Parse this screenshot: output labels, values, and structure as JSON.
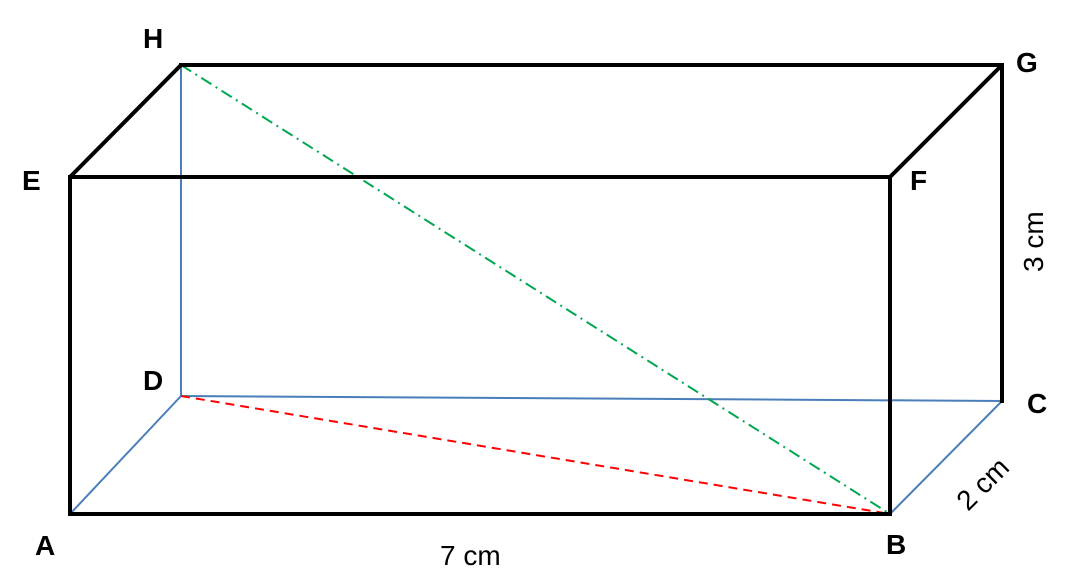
{
  "vertices": {
    "A": "A",
    "B": "B",
    "C": "C",
    "D": "D",
    "E": "E",
    "F": "F",
    "G": "G",
    "H": "H"
  },
  "dimensions": {
    "length": "7 cm",
    "width": "2 cm",
    "height": "3 cm"
  },
  "colors": {
    "visible_edge": "#000000",
    "hidden_edge": "#4a7ebb",
    "face_diagonal_DB": "#ff0000",
    "space_diagonal_HB": "#00a650"
  }
}
